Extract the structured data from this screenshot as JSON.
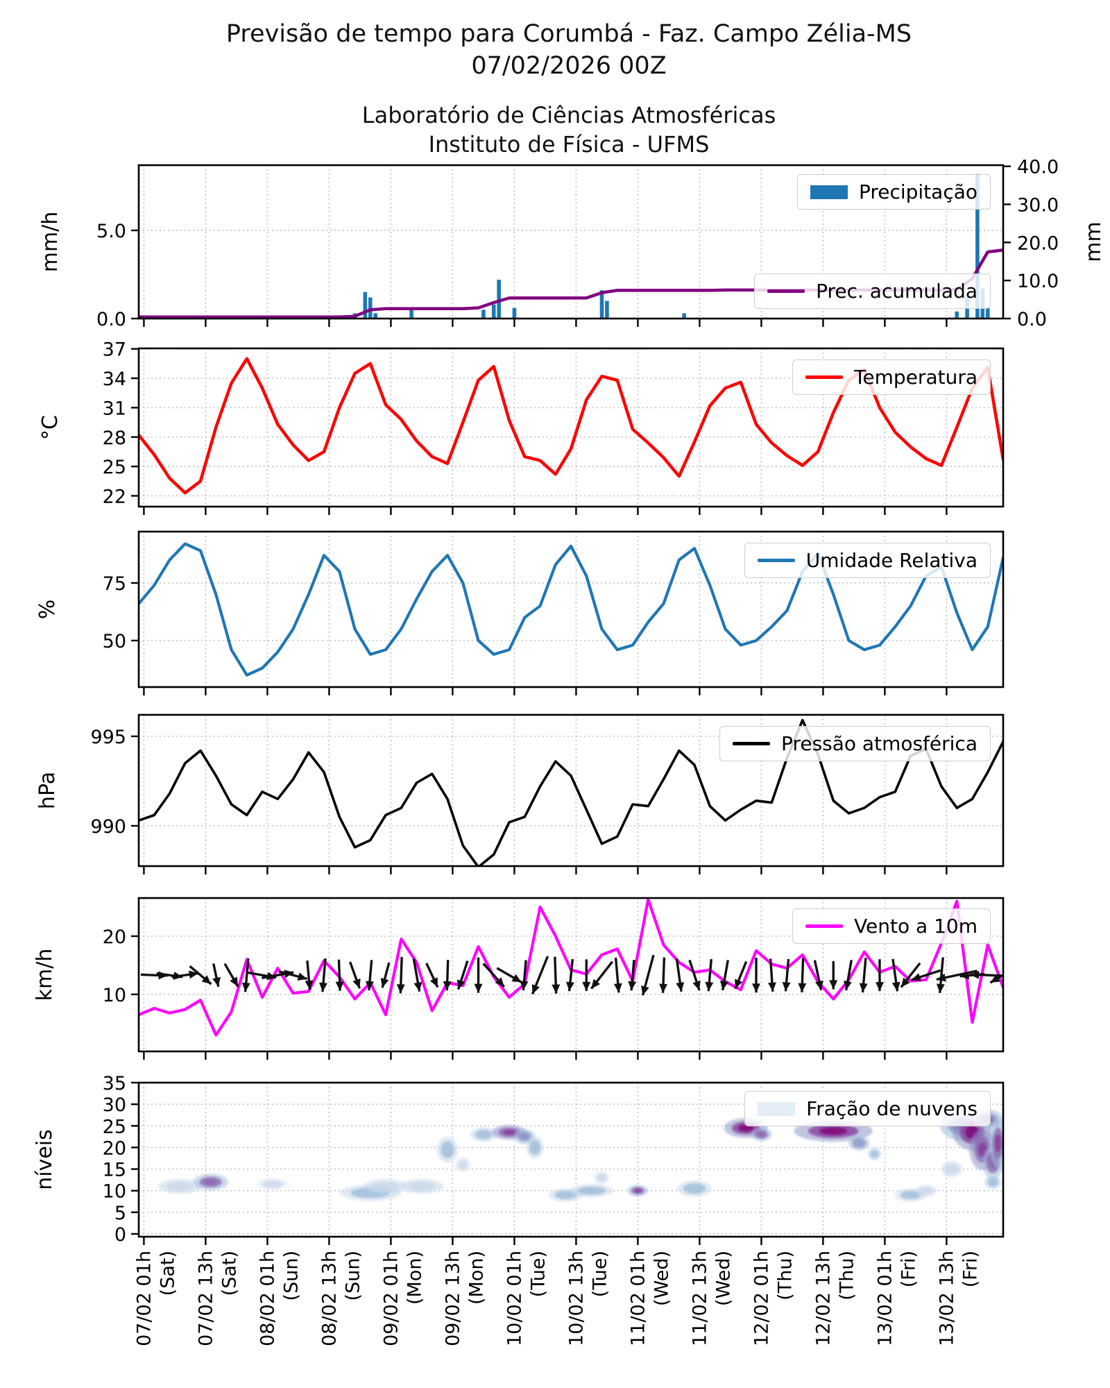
{
  "header": {
    "title_line1": "Previsão de tempo para Corumbá - Faz. Campo Zélia-MS",
    "title_line2": "07/02/2026 00Z",
    "subtitle_line1": "Laboratório de Ciências Atmosféricas",
    "subtitle_line2": "Instituto de Física - UFMS"
  },
  "x_axis": {
    "hour_range": [
      0,
      168
    ],
    "tick_hours": [
      1,
      13,
      25,
      37,
      49,
      61,
      73,
      85,
      97,
      109,
      121,
      133,
      145,
      157
    ],
    "tick_labels": [
      {
        "date": "07/02 01h",
        "day": "(Sat)"
      },
      {
        "date": "07/02 13h",
        "day": "(Sat)"
      },
      {
        "date": "08/02 01h",
        "day": "(Sun)"
      },
      {
        "date": "08/02 13h",
        "day": "(Sun)"
      },
      {
        "date": "09/02 01h",
        "day": "(Mon)"
      },
      {
        "date": "09/02 13h",
        "day": "(Mon)"
      },
      {
        "date": "10/02 01h",
        "day": "(Tue)"
      },
      {
        "date": "10/02 13h",
        "day": "(Tue)"
      },
      {
        "date": "11/02 01h",
        "day": "(Wed)"
      },
      {
        "date": "11/02 13h",
        "day": "(Wed)"
      },
      {
        "date": "12/02 01h",
        "day": "(Thu)"
      },
      {
        "date": "12/02 13h",
        "day": "(Thu)"
      },
      {
        "date": "13/02 01h",
        "day": "(Fri)"
      },
      {
        "date": "13/02 13h",
        "day": "(Fri)"
      }
    ]
  },
  "chart_data": [
    {
      "id": "precipitation",
      "type": "bar",
      "ylabel": "mm/h",
      "ylabel_right": "mm",
      "ylim": [
        0,
        8.7
      ],
      "yticks": [
        5,
        0
      ],
      "ytick_labels": [
        "5.0",
        "0.0"
      ],
      "ylim_right": [
        0,
        40.3
      ],
      "yticks_right": [
        40,
        30,
        20,
        10,
        0
      ],
      "ytick_right_labels": [
        "40.0",
        "30.0",
        "20.0",
        "10.0",
        "0.0"
      ],
      "legend": [
        {
          "label": "Precipitação",
          "color": "#1f77b4"
        },
        {
          "label": "Prec. acumulada",
          "color": "#800080"
        }
      ],
      "bars_hour_mmh": [
        [
          42,
          0.3
        ],
        [
          44,
          1.5
        ],
        [
          45,
          1.2
        ],
        [
          46,
          0.3
        ],
        [
          53,
          0.5
        ],
        [
          67,
          0.5
        ],
        [
          69,
          0.8
        ],
        [
          70,
          2.2
        ],
        [
          73,
          0.6
        ],
        [
          90,
          1.6
        ],
        [
          91,
          1.0
        ],
        [
          106,
          0.3
        ],
        [
          159,
          0.4
        ],
        [
          161,
          1.2
        ],
        [
          163,
          8.2
        ],
        [
          164,
          1.7
        ],
        [
          165,
          0.6
        ]
      ],
      "accumulated_mm": {
        "x_step_hours": 3,
        "values": [
          0.4,
          0.4,
          0.4,
          0.4,
          0.4,
          0.4,
          0.4,
          0.4,
          0.4,
          0.4,
          0.4,
          0.4,
          0.4,
          0.4,
          0.6,
          2.3,
          2.6,
          2.6,
          2.6,
          2.6,
          2.6,
          2.6,
          2.8,
          4.2,
          5.4,
          5.4,
          5.4,
          5.4,
          5.4,
          5.4,
          6.8,
          7.4,
          7.4,
          7.4,
          7.4,
          7.4,
          7.4,
          7.4,
          7.5,
          7.5,
          7.5,
          7.5,
          7.5,
          7.5,
          7.5,
          7.5,
          7.5,
          7.5,
          7.5,
          7.5,
          7.5,
          7.5,
          7.5,
          7.6,
          10.5,
          17.5,
          18.0
        ]
      }
    },
    {
      "id": "temperature",
      "type": "line",
      "label": "Temperatura",
      "color": "#ff0000",
      "ylabel": "°C",
      "ylim": [
        20.9,
        37.05
      ],
      "yticks": [
        37,
        34,
        31,
        28,
        25,
        22
      ],
      "ytick_labels": [
        "37",
        "34",
        "31",
        "28",
        "25",
        "22"
      ],
      "x_step_hours": 3,
      "values": [
        28.2,
        26.2,
        23.8,
        22.3,
        23.5,
        29.0,
        33.5,
        36.0,
        33.0,
        29.3,
        27.2,
        25.6,
        26.5,
        31.0,
        34.5,
        35.5,
        31.3,
        29.8,
        27.6,
        26.0,
        25.3,
        29.5,
        33.8,
        35.2,
        29.7,
        26.0,
        25.6,
        24.2,
        26.8,
        31.8,
        34.2,
        33.8,
        28.8,
        27.4,
        25.9,
        24.0,
        27.5,
        31.2,
        33.0,
        33.6,
        29.3,
        27.4,
        26.1,
        25.1,
        26.5,
        30.5,
        33.8,
        34.9,
        31.0,
        28.5,
        27.0,
        25.8,
        25.1,
        29.0,
        33.0,
        35.1,
        25.7
      ]
    },
    {
      "id": "relative_humidity",
      "type": "line",
      "label": "Umidade Relativa",
      "color": "#1f77b4",
      "ylabel": "%",
      "ylim": [
        29.8,
        97.3
      ],
      "yticks": [
        75,
        50
      ],
      "ytick_labels": [
        "75",
        "50"
      ],
      "x_step_hours": 3,
      "values": [
        66,
        74,
        85,
        92,
        89,
        70,
        46,
        35,
        38,
        45,
        55,
        70,
        87,
        80,
        55,
        44,
        46,
        55,
        68,
        80,
        87,
        75,
        50,
        44,
        46,
        60,
        65,
        83,
        91,
        78,
        55,
        46,
        48,
        58,
        66,
        85,
        90,
        74,
        55,
        48,
        50,
        56,
        63,
        80,
        88,
        70,
        50,
        46,
        48,
        56,
        65,
        78,
        82,
        62,
        46,
        56,
        86
      ]
    },
    {
      "id": "pressure",
      "type": "line",
      "label": "Pressão atmosférica",
      "color": "#000000",
      "ylabel": "hPa",
      "ylim": [
        987.75,
        996.2
      ],
      "yticks": [
        995,
        990
      ],
      "ytick_labels": [
        "995",
        "990"
      ],
      "x_step_hours": 3,
      "values": [
        990.3,
        990.6,
        991.8,
        993.5,
        994.2,
        992.8,
        991.2,
        990.6,
        991.9,
        991.5,
        992.6,
        994.1,
        993.0,
        990.5,
        988.8,
        989.2,
        990.6,
        991.0,
        992.4,
        992.9,
        991.5,
        988.9,
        987.7,
        988.4,
        990.2,
        990.5,
        992.2,
        993.6,
        992.8,
        990.9,
        989.0,
        989.4,
        991.2,
        991.1,
        992.6,
        994.2,
        993.4,
        991.1,
        990.3,
        990.9,
        991.4,
        991.3,
        993.8,
        995.9,
        994.0,
        991.4,
        990.7,
        991.0,
        991.6,
        991.9,
        993.9,
        994.3,
        992.2,
        991.0,
        991.5,
        993.0,
        994.7
      ]
    },
    {
      "id": "wind_10m",
      "type": "line",
      "label": "Vento a 10m",
      "color": "#ff00ff",
      "ylabel": "km/h",
      "ylim": [
        0.2,
        26.55
      ],
      "yticks": [
        20,
        10
      ],
      "ytick_labels": [
        "20",
        "10"
      ],
      "x_step_hours": 3,
      "values": [
        6.5,
        7.6,
        6.8,
        7.4,
        9.0,
        3.0,
        7.0,
        16.0,
        9.5,
        14.5,
        10.2,
        10.5,
        15.8,
        13.0,
        9.2,
        12.0,
        6.5,
        19.5,
        15.5,
        7.2,
        12.0,
        11.5,
        18.2,
        13.0,
        9.5,
        11.8,
        25.0,
        20.0,
        14.2,
        13.5,
        16.8,
        17.8,
        12.3,
        26.3,
        18.5,
        15.5,
        13.8,
        14.2,
        12.2,
        10.8,
        17.5,
        15.2,
        14.5,
        16.8,
        12.2,
        9.2,
        12.5,
        17.3,
        13.8,
        14.8,
        12.3,
        12.5,
        18.8,
        26.0,
        5.2,
        18.5,
        11.2
      ],
      "arrows": {
        "anchor_kmh": 13.3,
        "start_hour": 3,
        "step_hours": 3,
        "angles_deg": [
          2,
          8,
          352,
          40,
          78,
          60,
          95,
          10,
          350,
          15,
          85,
          95,
          88,
          70,
          95,
          105,
          92,
          80,
          65,
          92,
          108,
          90,
          48,
          30,
          95,
          112,
          88,
          96,
          90,
          128,
          85,
          95,
          105,
          92,
          82,
          72,
          95,
          100,
          112,
          90,
          86,
          95,
          92,
          78,
          90,
          100,
          95,
          90,
          82,
          128,
          162,
          95,
          168,
          175,
          182,
          150
        ]
      }
    },
    {
      "id": "cloud_fraction",
      "type": "heatmap",
      "label": "Fração de nuvens",
      "ylabel": "níveis",
      "ylim": [
        -0.65,
        35
      ],
      "yticks": [
        35,
        30,
        25,
        20,
        15,
        10,
        5,
        0
      ],
      "ytick_labels": [
        "35",
        "30",
        "25",
        "20",
        "15",
        "10",
        "5",
        "0"
      ],
      "palette": [
        "#e9eff7",
        "#c9d8ea",
        "#9ebcda",
        "#8c96c6",
        "#8c6bb1",
        "#88419d",
        "#810f7c"
      ],
      "blobs_hour_level_intensity_rx_ry": [
        [
          8,
          11,
          0.25,
          2.5,
          0.9
        ],
        [
          14,
          12,
          0.7,
          2,
          1.0
        ],
        [
          26,
          11.5,
          0.15,
          2,
          0.8
        ],
        [
          45,
          9.5,
          0.35,
          3.5,
          1.0
        ],
        [
          48,
          11,
          0.28,
          2.5,
          0.9
        ],
        [
          55,
          11,
          0.2,
          2.5,
          0.9
        ],
        [
          60,
          19.5,
          0.3,
          1.2,
          1.6
        ],
        [
          63,
          16,
          0.12,
          1,
          1
        ],
        [
          67,
          23,
          0.4,
          1.5,
          0.9
        ],
        [
          72,
          23.5,
          0.88,
          2,
          0.9
        ],
        [
          75,
          22.5,
          0.55,
          1.2,
          0.9
        ],
        [
          77,
          20,
          0.3,
          1,
          1.4
        ],
        [
          83,
          9,
          0.3,
          2,
          0.8
        ],
        [
          88,
          10,
          0.35,
          2.5,
          0.8
        ],
        [
          90,
          13,
          0.15,
          1,
          0.9
        ],
        [
          97,
          10,
          0.8,
          1.2,
          0.7
        ],
        [
          108,
          10.5,
          0.3,
          2,
          1.0
        ],
        [
          118,
          24.5,
          0.92,
          2.5,
          1.2
        ],
        [
          121,
          23,
          0.72,
          1.2,
          0.8
        ],
        [
          135,
          23.8,
          0.95,
          4.5,
          1.3
        ],
        [
          140,
          21,
          0.5,
          1.2,
          0.9
        ],
        [
          143,
          18.5,
          0.4,
          0.8,
          0.8
        ],
        [
          150,
          9,
          0.3,
          1.8,
          0.8
        ],
        [
          153,
          10,
          0.28,
          1.2,
          0.7
        ],
        [
          158,
          15,
          0.2,
          1.2,
          1.0
        ],
        [
          160,
          25,
          0.6,
          2.5,
          1.8
        ],
        [
          162,
          23.5,
          0.95,
          2.2,
          2.2
        ],
        [
          164,
          19.5,
          0.85,
          1.5,
          2.5
        ],
        [
          165,
          26.5,
          0.65,
          1.8,
          1.2
        ],
        [
          166,
          16.5,
          0.7,
          1.2,
          2.0
        ],
        [
          166,
          12,
          0.3,
          1,
          0.9
        ],
        [
          167,
          21,
          0.8,
          1,
          3
        ]
      ]
    }
  ]
}
